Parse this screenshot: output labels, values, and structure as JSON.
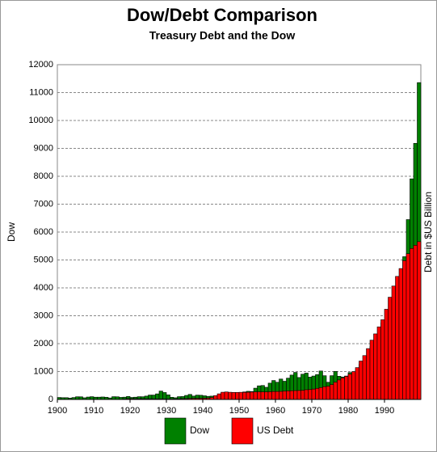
{
  "chart_data": {
    "type": "bar",
    "title": "Dow/Debt Comparison",
    "subtitle": "Treasury Debt and the Dow",
    "y_label": "Dow",
    "y2_label": "Debt in $US Billion",
    "x": [
      1900,
      1901,
      1902,
      1903,
      1904,
      1905,
      1906,
      1907,
      1908,
      1909,
      1910,
      1911,
      1912,
      1913,
      1914,
      1915,
      1916,
      1917,
      1918,
      1919,
      1920,
      1921,
      1922,
      1923,
      1924,
      1925,
      1926,
      1927,
      1928,
      1929,
      1930,
      1931,
      1932,
      1933,
      1934,
      1935,
      1936,
      1937,
      1938,
      1939,
      1940,
      1941,
      1942,
      1943,
      1944,
      1945,
      1946,
      1947,
      1948,
      1949,
      1950,
      1951,
      1952,
      1953,
      1954,
      1955,
      1956,
      1957,
      1958,
      1959,
      1960,
      1961,
      1962,
      1963,
      1964,
      1965,
      1966,
      1967,
      1968,
      1969,
      1970,
      1971,
      1972,
      1973,
      1974,
      1975,
      1976,
      1977,
      1978,
      1979,
      1980,
      1981,
      1982,
      1983,
      1984,
      1985,
      1986,
      1987,
      1988,
      1989,
      1990,
      1991,
      1992,
      1993,
      1994,
      1995,
      1996,
      1997,
      1998,
      1999
    ],
    "series": [
      {
        "name": "Dow",
        "color": "#008000",
        "values": [
          71,
          64,
          64,
          49,
          69,
          96,
          94,
          59,
          86,
          99,
          81,
          82,
          88,
          79,
          54,
          99,
          95,
          74,
          82,
          107,
          72,
          81,
          99,
          96,
          120,
          157,
          157,
          200,
          300,
          248,
          165,
          78,
          60,
          100,
          104,
          144,
          180,
          121,
          155,
          150,
          131,
          111,
          119,
          136,
          152,
          193,
          177,
          181,
          177,
          200,
          235,
          269,
          292,
          281,
          404,
          488,
          500,
          436,
          584,
          679,
          616,
          731,
          652,
          763,
          874,
          969,
          786,
          905,
          944,
          800,
          839,
          890,
          1020,
          851,
          616,
          852,
          1005,
          831,
          805,
          839,
          964,
          875,
          1047,
          1259,
          1212,
          1547,
          1896,
          1939,
          2169,
          2753,
          2634,
          3169,
          3301,
          3754,
          3834,
          5117,
          6448,
          7908,
          9181,
          11358
        ]
      },
      {
        "name": "US Debt",
        "color": "#ff0000",
        "values": [
          1.3,
          1.2,
          1.2,
          1.2,
          1.1,
          1.1,
          1.1,
          1.1,
          1.2,
          1.1,
          1.1,
          1.2,
          1.2,
          1.2,
          1.2,
          1.2,
          1.2,
          5.7,
          14.6,
          27.4,
          26,
          24,
          23,
          22.3,
          21.2,
          20.5,
          19.6,
          18.5,
          17.6,
          16.9,
          16,
          16.8,
          19.5,
          22.5,
          27,
          28.7,
          33.8,
          36.4,
          37.2,
          40.4,
          43,
          49,
          72,
          137,
          201,
          259,
          269,
          258,
          252,
          253,
          257,
          255,
          259,
          266,
          271,
          274,
          273,
          271,
          276,
          285,
          286,
          289,
          298,
          306,
          312,
          317,
          320,
          326,
          348,
          354,
          371,
          398,
          427,
          458,
          475,
          533,
          620,
          699,
          772,
          827,
          908,
          998,
          1142,
          1377,
          1572,
          1823,
          2125,
          2350,
          2602,
          2857,
          3233,
          3665,
          4065,
          4411,
          4693,
          4974,
          5225,
          5413,
          5526,
          5656
        ]
      }
    ],
    "xlim": [
      1900,
      2000
    ],
    "xticks": [
      1900,
      1910,
      1920,
      1930,
      1940,
      1950,
      1960,
      1970,
      1980,
      1990
    ],
    "ylim": [
      0,
      12000
    ],
    "yticks": [
      0,
      1000,
      2000,
      3000,
      4000,
      5000,
      6000,
      7000,
      8000,
      9000,
      10000,
      11000,
      12000
    ],
    "grid": true
  }
}
